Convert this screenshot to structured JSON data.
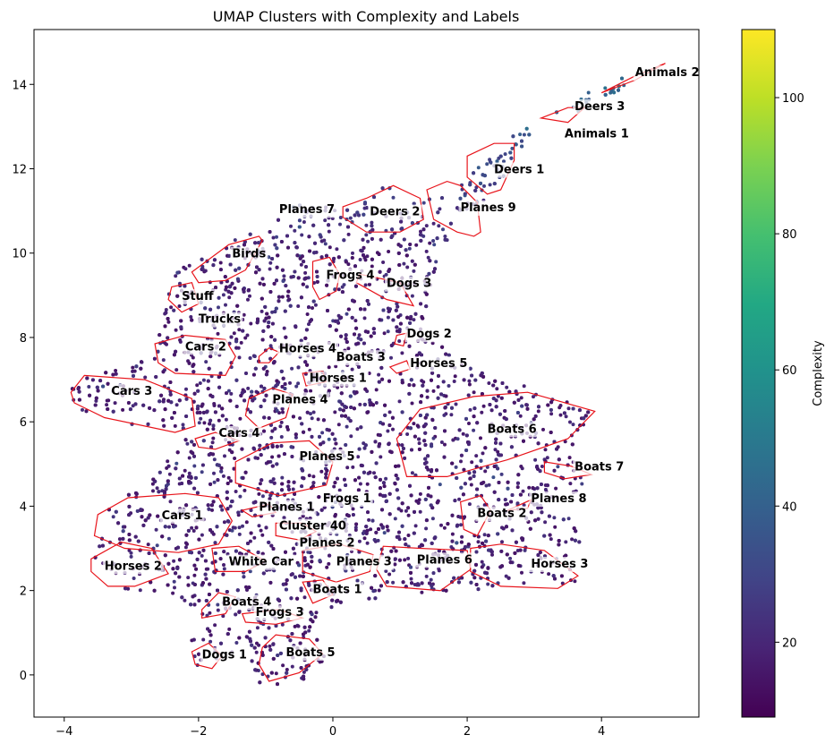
{
  "chart_data": {
    "type": "scatter",
    "title": "UMAP Clusters with Complexity and Labels",
    "xlabel": "",
    "ylabel": "",
    "xlim": [
      -4.45,
      5.45
    ],
    "ylim": [
      -1.0,
      15.3
    ],
    "x_ticks": [
      -4,
      -2,
      0,
      2,
      4
    ],
    "y_ticks": [
      0,
      2,
      4,
      6,
      8,
      10,
      12,
      14
    ],
    "grid": false,
    "colorbar": {
      "label": "Complexity",
      "colormap": "viridis",
      "range": [
        9,
        110
      ],
      "ticks": [
        20,
        40,
        60,
        80,
        100
      ]
    },
    "hull_color": "#e8141b",
    "clusters": [
      {
        "label": "Animals 2",
        "x": 4.5,
        "y": 14.3,
        "hull": [
          [
            4.0,
            13.8
          ],
          [
            4.5,
            14.2
          ],
          [
            4.95,
            14.5
          ],
          [
            4.5,
            14.1
          ]
        ]
      },
      {
        "label": "Deers 3",
        "x": 3.6,
        "y": 13.5,
        "hull": [
          [
            3.1,
            13.2
          ],
          [
            3.5,
            13.45
          ],
          [
            3.75,
            13.45
          ],
          [
            3.5,
            13.1
          ]
        ]
      },
      {
        "label": "Animals 1",
        "x": 3.45,
        "y": 12.85,
        "hull": []
      },
      {
        "label": "Deers 1",
        "x": 2.4,
        "y": 12.0,
        "hull": [
          [
            2.0,
            12.3
          ],
          [
            2.4,
            12.6
          ],
          [
            2.7,
            12.6
          ],
          [
            2.7,
            12.2
          ],
          [
            2.5,
            11.5
          ],
          [
            2.3,
            11.4
          ],
          [
            2.0,
            11.8
          ]
        ]
      },
      {
        "label": "Planes 9",
        "x": 1.9,
        "y": 11.1,
        "hull": [
          [
            1.4,
            11.5
          ],
          [
            1.7,
            11.7
          ],
          [
            1.9,
            11.6
          ],
          [
            2.15,
            11.2
          ],
          [
            2.2,
            10.5
          ],
          [
            2.1,
            10.4
          ],
          [
            1.85,
            10.5
          ],
          [
            1.5,
            10.8
          ]
        ]
      },
      {
        "label": "Deers 2",
        "x": 0.55,
        "y": 11.0,
        "hull": [
          [
            0.15,
            11.1
          ],
          [
            0.5,
            11.3
          ],
          [
            0.9,
            11.6
          ],
          [
            1.3,
            11.3
          ],
          [
            1.35,
            10.8
          ],
          [
            1.0,
            10.5
          ],
          [
            0.5,
            10.5
          ],
          [
            0.15,
            10.85
          ]
        ]
      },
      {
        "label": "Planes 7",
        "x": -0.8,
        "y": 11.05,
        "hull": []
      },
      {
        "label": "Birds",
        "x": -1.5,
        "y": 10.0,
        "hull": [
          [
            -2.1,
            9.55
          ],
          [
            -1.55,
            10.2
          ],
          [
            -1.1,
            10.4
          ],
          [
            -1.05,
            10.3
          ],
          [
            -1.3,
            9.6
          ],
          [
            -1.6,
            9.35
          ],
          [
            -2.0,
            9.3
          ]
        ]
      },
      {
        "label": "Frogs 4",
        "x": -0.1,
        "y": 9.5,
        "hull": [
          [
            -0.3,
            9.8
          ],
          [
            -0.05,
            9.9
          ],
          [
            0.1,
            9.5
          ],
          [
            0.05,
            9.1
          ],
          [
            -0.2,
            8.9
          ],
          [
            -0.3,
            9.2
          ]
        ]
      },
      {
        "label": "Dogs 3",
        "x": 0.8,
        "y": 9.3,
        "hull": [
          [
            0.4,
            9.5
          ],
          [
            1.0,
            9.3
          ],
          [
            1.2,
            8.75
          ],
          [
            0.8,
            8.9
          ],
          [
            0.35,
            9.3
          ]
        ]
      },
      {
        "label": "Stuff",
        "x": -2.25,
        "y": 9.0,
        "hull": [
          [
            -2.4,
            9.2
          ],
          [
            -2.1,
            9.3
          ],
          [
            -2.0,
            8.8
          ],
          [
            -2.25,
            8.6
          ],
          [
            -2.45,
            8.9
          ]
        ]
      },
      {
        "label": "Trucks",
        "x": -2.0,
        "y": 8.45,
        "hull": []
      },
      {
        "label": "Dogs 2",
        "x": 1.1,
        "y": 8.1,
        "hull": [
          [
            0.95,
            8.05
          ],
          [
            1.1,
            8.1
          ],
          [
            1.05,
            7.8
          ],
          [
            0.92,
            7.85
          ]
        ]
      },
      {
        "label": "Cars 2",
        "x": -2.2,
        "y": 7.8,
        "hull": [
          [
            -2.65,
            7.85
          ],
          [
            -2.2,
            8.05
          ],
          [
            -1.6,
            7.95
          ],
          [
            -1.45,
            7.55
          ],
          [
            -1.6,
            7.1
          ],
          [
            -2.35,
            7.15
          ],
          [
            -2.6,
            7.4
          ]
        ]
      },
      {
        "label": "Horses 4",
        "x": -0.8,
        "y": 7.75,
        "hull": [
          [
            -1.1,
            7.55
          ],
          [
            -0.95,
            7.75
          ],
          [
            -0.8,
            7.65
          ],
          [
            -0.95,
            7.4
          ],
          [
            -1.1,
            7.4
          ]
        ]
      },
      {
        "label": "Boats 3",
        "x": 0.05,
        "y": 7.55,
        "hull": []
      },
      {
        "label": "Horses 5",
        "x": 1.15,
        "y": 7.4,
        "hull": [
          [
            0.85,
            7.3
          ],
          [
            1.1,
            7.45
          ],
          [
            1.15,
            7.25
          ],
          [
            0.95,
            7.15
          ]
        ]
      },
      {
        "label": "Horses 1",
        "x": -0.35,
        "y": 7.05,
        "hull": [
          [
            -0.45,
            7.15
          ],
          [
            -0.15,
            7.2
          ],
          [
            -0.1,
            6.95
          ],
          [
            -0.4,
            6.85
          ]
        ]
      },
      {
        "label": "Cars 3",
        "x": -3.3,
        "y": 6.75,
        "hull": [
          [
            -3.9,
            6.7
          ],
          [
            -3.7,
            7.1
          ],
          [
            -2.8,
            7.0
          ],
          [
            -2.1,
            6.55
          ],
          [
            -2.05,
            5.9
          ],
          [
            -2.35,
            5.75
          ],
          [
            -3.4,
            6.1
          ],
          [
            -3.85,
            6.45
          ]
        ]
      },
      {
        "label": "Planes 4",
        "x": -0.9,
        "y": 6.55,
        "hull": [
          [
            -1.25,
            6.55
          ],
          [
            -0.9,
            6.8
          ],
          [
            -0.6,
            6.65
          ],
          [
            -0.7,
            6.1
          ],
          [
            -1.1,
            5.85
          ],
          [
            -1.3,
            6.15
          ]
        ]
      },
      {
        "label": "Boats 6",
        "x": 2.3,
        "y": 5.85,
        "hull": [
          [
            0.95,
            5.6
          ],
          [
            1.3,
            6.3
          ],
          [
            2.1,
            6.6
          ],
          [
            2.9,
            6.7
          ],
          [
            3.9,
            6.25
          ],
          [
            3.5,
            5.6
          ],
          [
            2.6,
            5.1
          ],
          [
            1.7,
            4.7
          ],
          [
            1.1,
            4.7
          ]
        ]
      },
      {
        "label": "Cars 4",
        "x": -1.7,
        "y": 5.75,
        "hull": [
          [
            -2.05,
            5.6
          ],
          [
            -1.75,
            5.75
          ],
          [
            -1.4,
            5.55
          ],
          [
            -1.75,
            5.35
          ],
          [
            -2.0,
            5.4
          ]
        ]
      },
      {
        "label": "Planes 5",
        "x": -0.5,
        "y": 5.2,
        "hull": [
          [
            -1.45,
            5.05
          ],
          [
            -0.9,
            5.5
          ],
          [
            -0.35,
            5.55
          ],
          [
            0.0,
            5.05
          ],
          [
            -0.1,
            4.5
          ],
          [
            -0.8,
            4.25
          ],
          [
            -1.45,
            4.55
          ]
        ]
      },
      {
        "label": "Boats 7",
        "x": 3.6,
        "y": 4.95,
        "hull": [
          [
            3.15,
            5.05
          ],
          [
            3.55,
            4.95
          ],
          [
            3.85,
            4.75
          ],
          [
            3.45,
            4.65
          ],
          [
            3.15,
            4.8
          ]
        ]
      },
      {
        "label": "Frogs 1",
        "x": -0.15,
        "y": 4.2,
        "hull": []
      },
      {
        "label": "Planes 8",
        "x": 2.95,
        "y": 4.2,
        "hull": [
          [
            2.6,
            3.9
          ],
          [
            2.95,
            4.15
          ],
          [
            2.9,
            3.95
          ]
        ]
      },
      {
        "label": "Planes 1",
        "x": -1.1,
        "y": 4.0,
        "hull": [
          [
            -1.35,
            3.9
          ],
          [
            -0.95,
            4.05
          ],
          [
            -0.85,
            3.85
          ],
          [
            -1.2,
            3.75
          ]
        ]
      },
      {
        "label": "Boats 2",
        "x": 2.15,
        "y": 3.85,
        "hull": [
          [
            1.9,
            4.1
          ],
          [
            2.2,
            4.25
          ],
          [
            2.35,
            3.9
          ],
          [
            2.15,
            3.3
          ],
          [
            1.95,
            3.45
          ]
        ]
      },
      {
        "label": "Cars 1",
        "x": -2.55,
        "y": 3.8,
        "hull": [
          [
            -3.5,
            3.8
          ],
          [
            -3.05,
            4.2
          ],
          [
            -2.2,
            4.3
          ],
          [
            -1.7,
            4.2
          ],
          [
            -1.5,
            3.65
          ],
          [
            -1.7,
            3.1
          ],
          [
            -2.3,
            2.9
          ],
          [
            -3.1,
            3.0
          ],
          [
            -3.55,
            3.3
          ]
        ]
      },
      {
        "label": "Cluster 40",
        "x": -0.8,
        "y": 3.55,
        "hull": [
          [
            -0.85,
            3.6
          ],
          [
            -0.45,
            3.6
          ],
          [
            -0.25,
            3.4
          ],
          [
            -0.5,
            3.2
          ],
          [
            -0.85,
            3.3
          ]
        ]
      },
      {
        "label": "Planes 2",
        "x": -0.5,
        "y": 3.15,
        "hull": []
      },
      {
        "label": "White Car",
        "x": -1.55,
        "y": 2.7,
        "hull": [
          [
            -1.8,
            3.0
          ],
          [
            -1.4,
            3.05
          ],
          [
            -1.0,
            2.7
          ],
          [
            -1.3,
            2.45
          ],
          [
            -1.75,
            2.45
          ]
        ]
      },
      {
        "label": "Planes 6",
        "x": 1.25,
        "y": 2.75,
        "hull": [
          [
            0.75,
            3.05
          ],
          [
            1.3,
            3.0
          ],
          [
            2.0,
            2.95
          ],
          [
            2.05,
            2.5
          ],
          [
            1.6,
            2.0
          ],
          [
            0.8,
            2.1
          ],
          [
            0.65,
            2.5
          ]
        ]
      },
      {
        "label": "Planes 3",
        "x": 0.05,
        "y": 2.7,
        "hull": [
          [
            -0.45,
            2.95
          ],
          [
            0.1,
            3.1
          ],
          [
            0.6,
            2.85
          ],
          [
            0.55,
            2.45
          ],
          [
            0.05,
            2.2
          ],
          [
            -0.45,
            2.45
          ]
        ]
      },
      {
        "label": "Horses 3",
        "x": 2.95,
        "y": 2.65,
        "hull": [
          [
            2.05,
            3.0
          ],
          [
            2.5,
            3.1
          ],
          [
            3.15,
            2.95
          ],
          [
            3.65,
            2.35
          ],
          [
            3.35,
            2.05
          ],
          [
            2.5,
            2.1
          ],
          [
            2.05,
            2.45
          ]
        ]
      },
      {
        "label": "Horses 2",
        "x": -3.4,
        "y": 2.6,
        "hull": [
          [
            -3.6,
            2.75
          ],
          [
            -3.15,
            3.15
          ],
          [
            -2.7,
            3.0
          ],
          [
            -2.45,
            2.4
          ],
          [
            -2.95,
            2.1
          ],
          [
            -3.35,
            2.1
          ],
          [
            -3.6,
            2.45
          ]
        ]
      },
      {
        "label": "Boats 1",
        "x": -0.3,
        "y": 2.05,
        "hull": [
          [
            -0.45,
            2.2
          ],
          [
            -0.15,
            2.25
          ],
          [
            0.0,
            1.9
          ],
          [
            -0.3,
            1.7
          ]
        ]
      },
      {
        "label": "Boats 4",
        "x": -1.65,
        "y": 1.75,
        "hull": [
          [
            -1.95,
            1.55
          ],
          [
            -1.7,
            1.95
          ],
          [
            -1.45,
            1.85
          ],
          [
            -1.6,
            1.45
          ],
          [
            -1.95,
            1.35
          ]
        ]
      },
      {
        "label": "Frogs 3",
        "x": -1.15,
        "y": 1.5,
        "hull": [
          [
            -1.35,
            1.45
          ],
          [
            -0.8,
            1.55
          ],
          [
            -0.45,
            1.35
          ],
          [
            -0.85,
            1.2
          ],
          [
            -1.3,
            1.25
          ]
        ]
      },
      {
        "label": "Dogs 1",
        "x": -1.95,
        "y": 0.5,
        "hull": [
          [
            -2.1,
            0.55
          ],
          [
            -1.85,
            0.75
          ],
          [
            -1.65,
            0.45
          ],
          [
            -1.8,
            0.15
          ],
          [
            -2.05,
            0.25
          ]
        ]
      },
      {
        "label": "Boats 5",
        "x": -0.7,
        "y": 0.55,
        "hull": [
          [
            -1.05,
            0.65
          ],
          [
            -0.85,
            0.95
          ],
          [
            -0.35,
            0.85
          ],
          [
            -0.15,
            0.5
          ],
          [
            -0.5,
            0.05
          ],
          [
            -0.95,
            -0.15
          ],
          [
            -1.1,
            0.25
          ]
        ]
      }
    ]
  }
}
